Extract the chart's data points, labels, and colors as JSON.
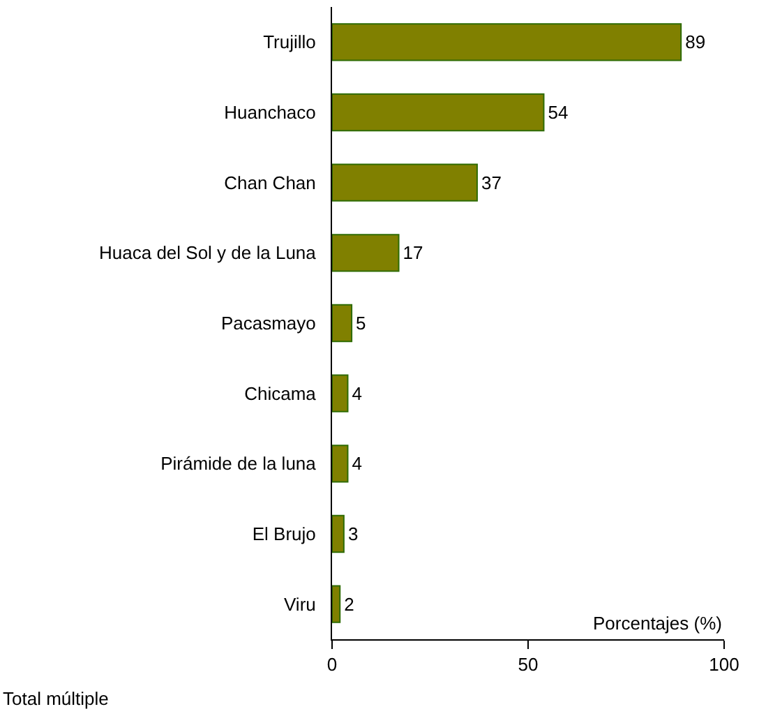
{
  "chart_data": {
    "type": "bar",
    "orientation": "horizontal",
    "categories": [
      "Trujillo",
      "Huanchaco",
      "Chan Chan",
      "Huaca del Sol y de la Luna",
      "Pacasmayo",
      "Chicama",
      "Pirámide de la luna",
      "El Brujo",
      "Viru"
    ],
    "values": [
      89,
      54,
      37,
      17,
      5,
      4,
      4,
      3,
      2
    ],
    "color": "#808000",
    "xlim": [
      0,
      100
    ],
    "xticks": [
      0,
      50,
      100
    ],
    "xlabel": "Porcentajes (%)",
    "annotations": [
      "Total múltiple"
    ],
    "data_labels": true
  }
}
